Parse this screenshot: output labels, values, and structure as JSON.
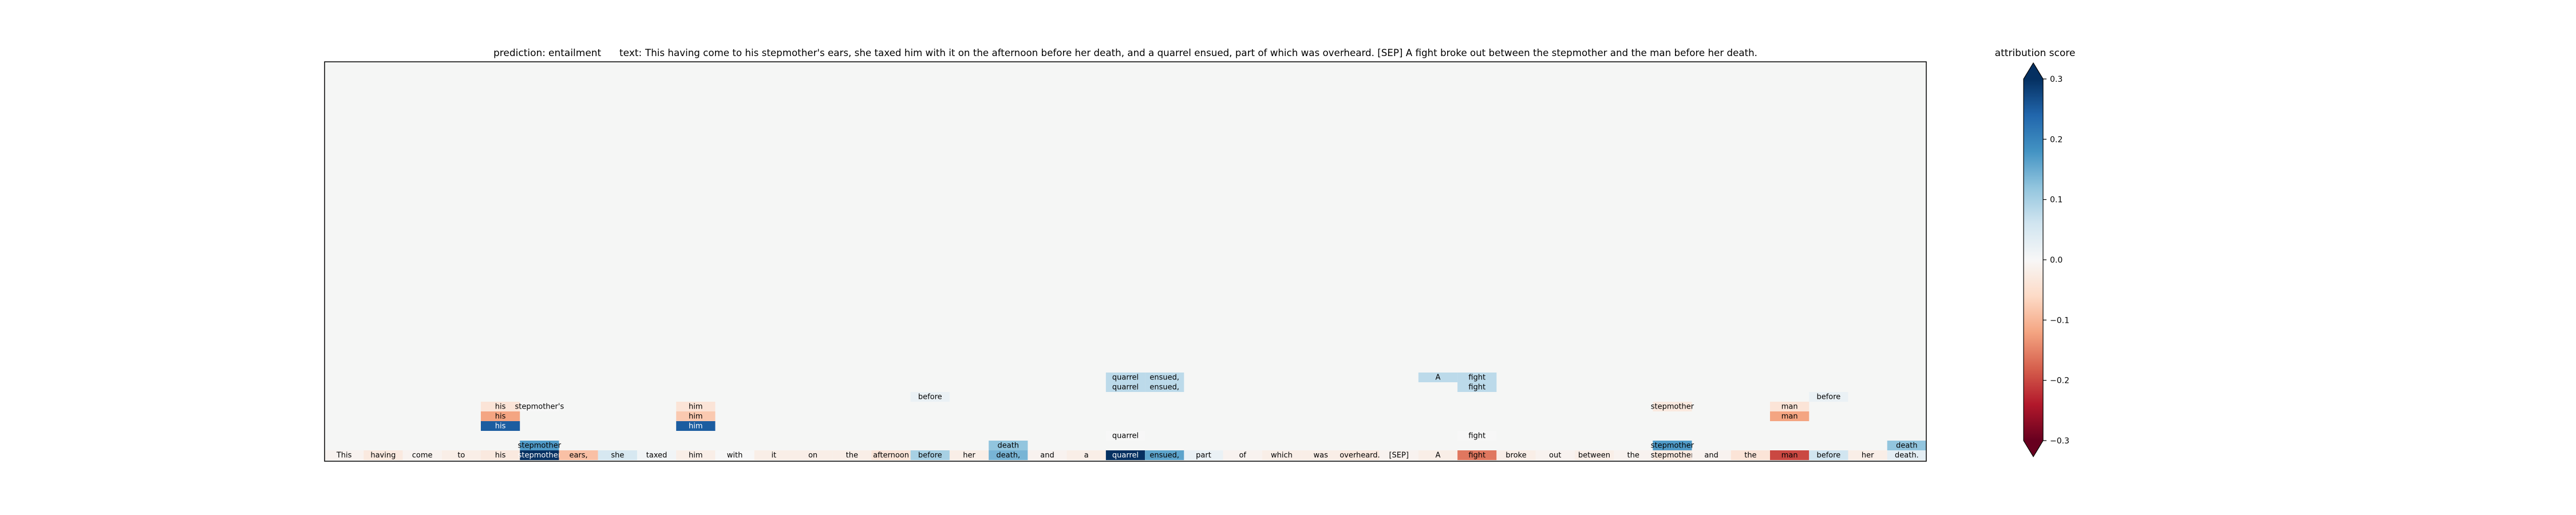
{
  "header": {
    "prediction_label": "prediction:",
    "prediction_value": "entailment",
    "text_label": "text:",
    "text_value": "This having come to his stepmother's ears, she taxed him with it on the afternoon before her death, and a quarrel ensued, part of which was overheard. [SEP] A fight broke out between the stepmother and the man before her death."
  },
  "colorbar": {
    "title": "attribution score",
    "ticks": [
      "0.3",
      "0.2",
      "0.1",
      "0.0",
      "−0.1",
      "−0.2",
      "−0.3"
    ],
    "colors": [
      "#053061",
      "#2166ac",
      "#4393c3",
      "#92c5de",
      "#d1e5f0",
      "#f7f7f7",
      "#fddbc7",
      "#f4a582",
      "#d6604d",
      "#b2182b",
      "#67001f"
    ]
  },
  "chart_data": {
    "type": "heatmap",
    "title": "prediction:  entailment     text:  This having come to his stepmother's ears, she taxed him with it on the afternoon before her death, and a quarrel ensued, part of which was overheard. [SEP] A fight broke out between the stepmother and the man before her death.",
    "colorbar_label": "attribution score",
    "vlim": [
      -0.3,
      0.3
    ],
    "background_color": "#f5f6f5",
    "tokens": [
      "This",
      "having",
      "come",
      "to",
      "his",
      "stepmother",
      "ears,",
      "she",
      "taxed",
      "him",
      "with",
      "it",
      "on",
      "the",
      "afternoon",
      "before",
      "her",
      "death,",
      "and",
      "a",
      "quarrel",
      "ensued,",
      "part",
      "of",
      "which",
      "was",
      "overheard.",
      "[SEP]",
      "A",
      "fight",
      "broke",
      "out",
      "between",
      "the",
      "stepmother",
      "and",
      "the",
      "man",
      "before",
      "her",
      "death."
    ],
    "token_scores": [
      -0.01,
      -0.03,
      -0.01,
      -0.02,
      -0.03,
      0.3,
      -0.09,
      0.05,
      0.01,
      -0.02,
      0.0,
      -0.02,
      -0.02,
      -0.02,
      -0.04,
      0.1,
      -0.02,
      0.14,
      -0.01,
      -0.02,
      0.3,
      0.16,
      0.02,
      -0.01,
      -0.02,
      -0.02,
      -0.03,
      -0.01,
      -0.02,
      -0.16,
      -0.02,
      -0.01,
      -0.02,
      -0.01,
      -0.03,
      -0.01,
      -0.04,
      -0.2,
      0.06,
      -0.02,
      0.03
    ],
    "layers": [
      {
        "level": 1,
        "cells": [
          {
            "col": 5,
            "text": "stepmother",
            "score": 0.17
          },
          {
            "col": 17,
            "text": "death",
            "score": 0.12
          },
          {
            "col": 34,
            "text": "stepmother",
            "score": 0.17
          },
          {
            "col": 40,
            "text": "death",
            "score": 0.12
          }
        ]
      },
      {
        "level": 2,
        "cells": [
          {
            "col": 20,
            "text": "quarrel",
            "score": 0.0
          },
          {
            "col": 29,
            "text": "fight",
            "score": 0.0
          }
        ]
      },
      {
        "level": 3,
        "cells": [
          {
            "col": 4,
            "text": "his",
            "score": 0.25
          },
          {
            "col": 9,
            "text": "him",
            "score": 0.25
          }
        ]
      },
      {
        "level": 4,
        "cells": [
          {
            "col": 4,
            "text": "his",
            "score": -0.12
          },
          {
            "col": 9,
            "text": "him",
            "score": -0.08
          },
          {
            "col": 37,
            "text": "man",
            "score": -0.12
          }
        ]
      },
      {
        "level": 5,
        "cells": [
          {
            "col": 4,
            "text": "his",
            "score": -0.04
          },
          {
            "col": 5,
            "text": "stepmother's",
            "score": 0.0
          },
          {
            "col": 9,
            "text": "him",
            "score": -0.04
          },
          {
            "col": 34,
            "text": "stepmother",
            "score": -0.03
          },
          {
            "col": 37,
            "text": "man",
            "score": -0.04
          }
        ]
      },
      {
        "level": 6,
        "cells": [
          {
            "col": 15,
            "text": "before",
            "score": 0.02
          },
          {
            "col": 38,
            "text": "before",
            "score": 0.02
          }
        ]
      },
      {
        "level": 7,
        "cells": [
          {
            "col": 20,
            "text": "quarrel",
            "score": 0.08
          },
          {
            "col": 21,
            "text": "ensued,",
            "score": 0.08
          },
          {
            "col": 29,
            "text": "fight",
            "score": 0.08
          }
        ]
      },
      {
        "level": 8,
        "cells": [
          {
            "col": 20,
            "text": "quarrel",
            "score": 0.08
          },
          {
            "col": 21,
            "text": "ensued,",
            "score": 0.08
          },
          {
            "col": 28,
            "text": "A",
            "score": 0.08
          },
          {
            "col": 29,
            "text": "fight",
            "score": 0.08
          }
        ]
      }
    ]
  }
}
